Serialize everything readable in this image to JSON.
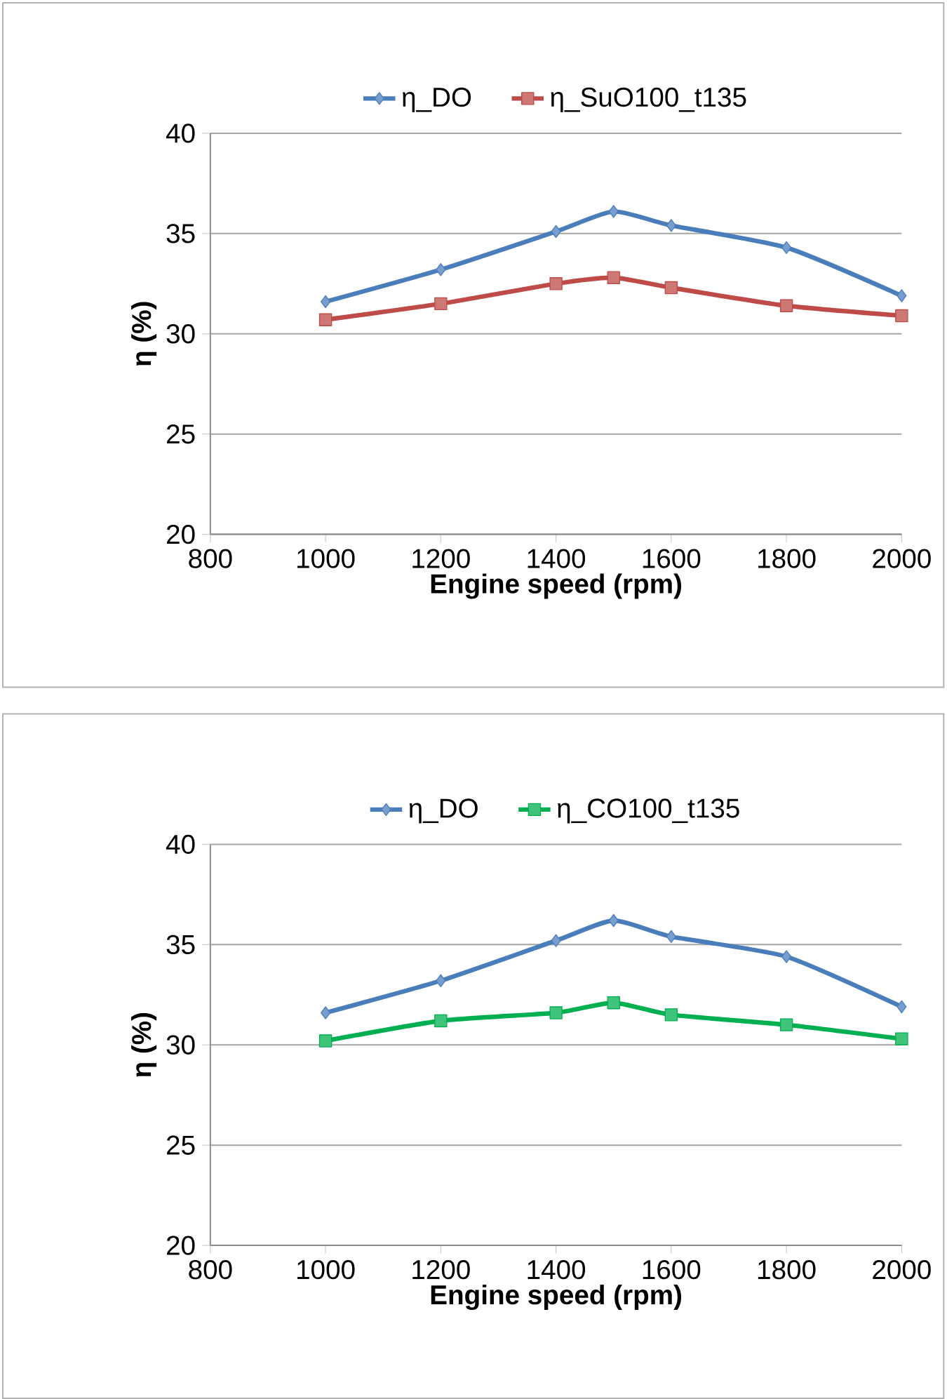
{
  "chart_data": [
    {
      "type": "line",
      "xlabel": "Engine speed (rpm)",
      "ylabel": "η (%)",
      "x": [
        1000,
        1200,
        1400,
        1500,
        1600,
        1800,
        2000
      ],
      "series": [
        {
          "name": "η_DO",
          "color": "#4a7ebb",
          "marker": "diamond",
          "values": [
            31.6,
            33.2,
            35.1,
            36.1,
            35.4,
            34.3,
            31.9
          ]
        },
        {
          "name": "η_SuO100_t135",
          "color": "#be4b48",
          "marker": "square",
          "values": [
            30.7,
            31.5,
            32.5,
            32.8,
            32.3,
            31.4,
            30.9
          ]
        }
      ],
      "xlim": [
        800,
        2000
      ],
      "xticks": [
        800,
        1000,
        1200,
        1400,
        1600,
        1800,
        2000
      ],
      "ylim": [
        20,
        40
      ],
      "yticks": [
        20,
        25,
        30,
        35,
        40
      ],
      "grid": "y",
      "legend": "top"
    },
    {
      "type": "line",
      "xlabel": "Engine speed (rpm)",
      "ylabel": "η (%)",
      "x": [
        1000,
        1200,
        1400,
        1500,
        1600,
        1800,
        2000
      ],
      "series": [
        {
          "name": "η_DO",
          "color": "#4a7ebb",
          "marker": "diamond",
          "values": [
            31.6,
            33.2,
            35.2,
            36.2,
            35.4,
            34.4,
            31.9
          ]
        },
        {
          "name": "η_CO100_t135",
          "color": "#00b050",
          "marker": "square",
          "values": [
            30.2,
            31.2,
            31.6,
            32.1,
            31.5,
            31.0,
            30.3
          ]
        }
      ],
      "xlim": [
        800,
        2000
      ],
      "xticks": [
        800,
        1000,
        1200,
        1400,
        1600,
        1800,
        2000
      ],
      "ylim": [
        20,
        40
      ],
      "yticks": [
        20,
        25,
        30,
        35,
        40
      ],
      "grid": "y",
      "legend": "top"
    }
  ]
}
